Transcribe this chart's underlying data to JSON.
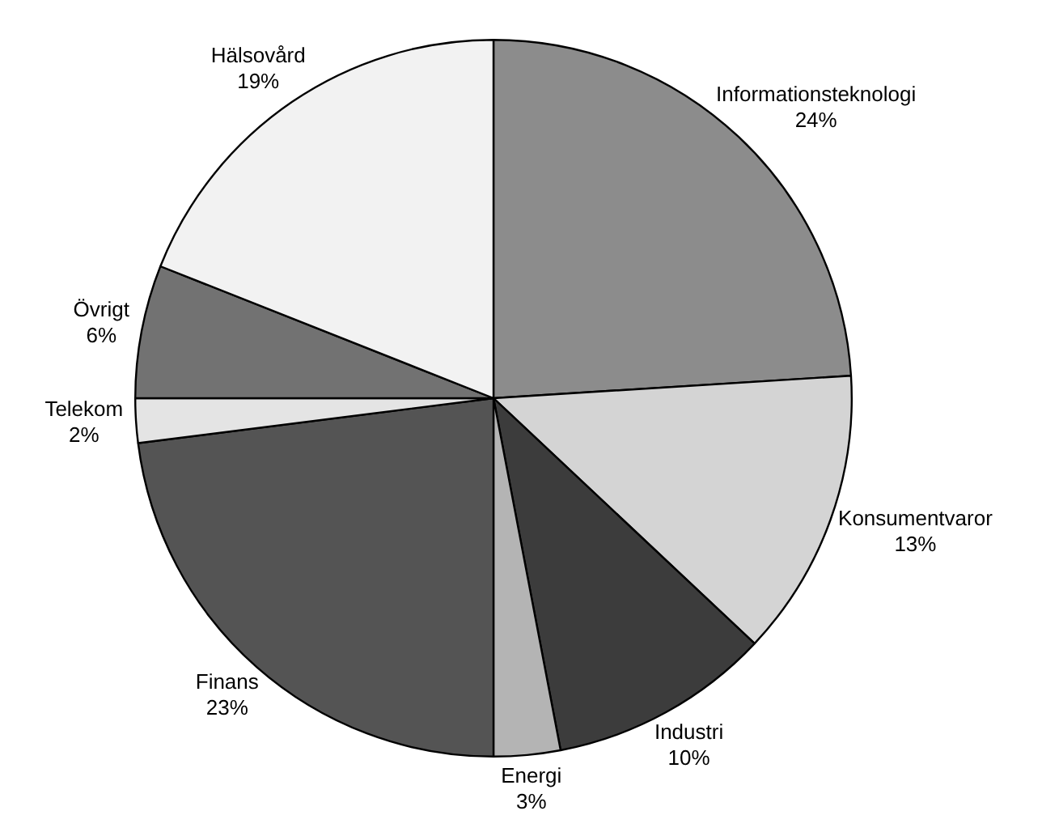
{
  "chart_data": {
    "type": "pie",
    "categories": [
      "Informationsteknologi",
      "Konsumentvaror",
      "Industri",
      "Energi",
      "Finans",
      "Telekom",
      "Övrigt",
      "Hälsovård"
    ],
    "values": [
      24,
      13,
      10,
      3,
      23,
      2,
      6,
      19
    ],
    "value_labels": [
      "24%",
      "13%",
      "10%",
      "3%",
      "23%",
      "2%",
      "6%",
      "19%"
    ],
    "colors": [
      "#8c8c8c",
      "#d4d4d4",
      "#3c3c3c",
      "#b4b4b4",
      "#545454",
      "#e4e4e4",
      "#727272",
      "#f2f2f2"
    ],
    "legend": false
  }
}
